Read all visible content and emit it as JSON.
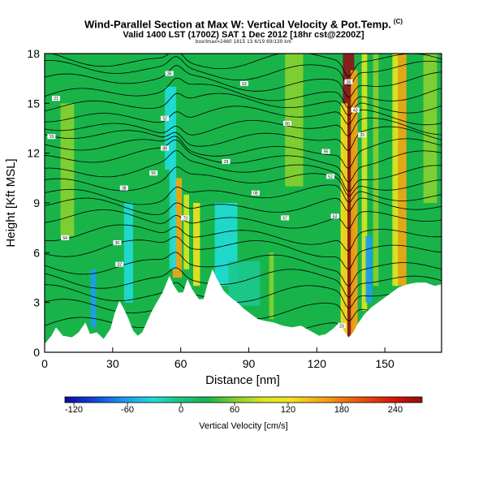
{
  "chart_data": {
    "type": "heatmap",
    "title": "Wind-Parallel Section at Max W: Vertical Velocity & Pot.Temp.",
    "title_mark": "(C)",
    "subtitle": "Valid 1400 LST (1700Z) SAT 1 Dec 2012 [18hr cst@2200Z]",
    "info_line": "box/lmax=2460 1815 13 6/19 69/139 km",
    "xlabel": "Distance [nm]",
    "ylabel": "Height [Kft MSL]",
    "xlim": [
      0,
      175
    ],
    "ylim": [
      0,
      18
    ],
    "xticks": [
      0,
      30,
      60,
      90,
      120,
      150
    ],
    "yticks": [
      0,
      3,
      6,
      9,
      12,
      15,
      18
    ],
    "colorbar": {
      "label": "Vertical Velocity [cm/s]",
      "range": [
        -130,
        270
      ],
      "tick_values": [
        -120,
        -60,
        0,
        60,
        120,
        180,
        240
      ],
      "tick_labels": [
        "-120",
        "-60",
        "0",
        "60",
        "120",
        "180",
        "240"
      ]
    },
    "colors": {
      "background": "#18b44a",
      "terrain": "#ffffff"
    },
    "terrain_profile": [
      [
        0,
        0.5
      ],
      [
        3,
        1.0
      ],
      [
        5,
        1.5
      ],
      [
        8,
        1.0
      ],
      [
        12,
        0.9
      ],
      [
        15,
        1.2
      ],
      [
        18,
        1.8
      ],
      [
        20,
        1.1
      ],
      [
        23,
        1.2
      ],
      [
        26,
        0.8
      ],
      [
        29,
        1.4
      ],
      [
        31,
        2.4
      ],
      [
        33,
        3.1
      ],
      [
        35,
        2.6
      ],
      [
        37,
        2.0
      ],
      [
        39,
        1.3
      ],
      [
        41,
        1.0
      ],
      [
        43,
        1.2
      ],
      [
        45,
        1.8
      ],
      [
        47,
        2.4
      ],
      [
        49,
        2.9
      ],
      [
        52,
        3.6
      ],
      [
        55,
        4.6
      ],
      [
        57,
        4.0
      ],
      [
        59,
        3.6
      ],
      [
        61,
        3.6
      ],
      [
        63,
        4.4
      ],
      [
        65,
        3.8
      ],
      [
        68,
        3.2
      ],
      [
        70,
        3.2
      ],
      [
        72,
        4.2
      ],
      [
        74,
        5.0
      ],
      [
        76,
        4.4
      ],
      [
        79,
        3.7
      ],
      [
        82,
        3.3
      ],
      [
        85,
        3.0
      ],
      [
        88,
        2.6
      ],
      [
        91,
        2.3
      ],
      [
        94,
        2.0
      ],
      [
        97,
        1.9
      ],
      [
        101,
        1.8
      ],
      [
        105,
        1.6
      ],
      [
        109,
        1.5
      ],
      [
        113,
        1.6
      ],
      [
        117,
        1.3
      ],
      [
        121,
        1.0
      ],
      [
        124,
        1.1
      ],
      [
        127,
        1.4
      ],
      [
        130,
        1.8
      ],
      [
        132,
        1.3
      ],
      [
        134,
        0.9
      ],
      [
        136,
        1.2
      ],
      [
        138,
        1.7
      ],
      [
        141,
        2.3
      ],
      [
        144,
        2.7
      ],
      [
        147,
        3.0
      ],
      [
        150,
        3.3
      ],
      [
        153,
        3.6
      ],
      [
        156,
        3.9
      ],
      [
        160,
        4.1
      ],
      [
        164,
        4.2
      ],
      [
        168,
        4.2
      ],
      [
        172,
        4.0
      ],
      [
        175,
        4.1
      ]
    ],
    "velocity_features": [
      {
        "x": 134,
        "half_width": 2.5,
        "y_from": 0.8,
        "y_to": 18,
        "value": 260
      },
      {
        "x": 132,
        "half_width": 1.5,
        "y_from": 1.0,
        "y_to": 15,
        "value": 120
      },
      {
        "x": 136.5,
        "half_width": 1.5,
        "y_from": 1.0,
        "y_to": 17,
        "value": 150
      },
      {
        "x": 141,
        "half_width": 1.2,
        "y_from": 2.5,
        "y_to": 18,
        "value": 80
      },
      {
        "x": 143,
        "half_width": 1.5,
        "y_from": 3.0,
        "y_to": 7.0,
        "value": -70
      },
      {
        "x": 146,
        "half_width": 1.2,
        "y_from": 4.0,
        "y_to": 18,
        "value": 40
      },
      {
        "x": 157,
        "half_width": 2.5,
        "y_from": 4.0,
        "y_to": 18,
        "value": 140
      },
      {
        "x": 154.5,
        "half_width": 1.2,
        "y_from": 4.0,
        "y_to": 18,
        "value": 60
      },
      {
        "x": 58.5,
        "half_width": 2.0,
        "y_from": 4.5,
        "y_to": 10.5,
        "value": 160
      },
      {
        "x": 56.5,
        "half_width": 1.5,
        "y_from": 5.0,
        "y_to": 16,
        "value": -40
      },
      {
        "x": 55,
        "half_width": 2.0,
        "y_from": 11,
        "y_to": 16,
        "value": -50
      },
      {
        "x": 62.5,
        "half_width": 1.2,
        "y_from": 5.0,
        "y_to": 9.5,
        "value": 80
      },
      {
        "x": 67,
        "half_width": 1.5,
        "y_from": 4.0,
        "y_to": 9.0,
        "value": 100
      },
      {
        "x": 21.5,
        "half_width": 1.2,
        "y_from": 1.5,
        "y_to": 5.0,
        "value": -60
      },
      {
        "x": 37,
        "half_width": 2.0,
        "y_from": 3.0,
        "y_to": 9.0,
        "value": -40
      },
      {
        "x": 80,
        "half_width": 5.0,
        "y_from": 4.0,
        "y_to": 9.0,
        "value": -35
      },
      {
        "x": 88,
        "half_width": 7.0,
        "y_from": 2.8,
        "y_to": 5.5,
        "value": -25
      },
      {
        "x": 100,
        "half_width": 1.0,
        "y_from": 2.0,
        "y_to": 6.0,
        "value": 30
      },
      {
        "x": 10,
        "half_width": 3.0,
        "y_from": 7.0,
        "y_to": 15,
        "value": 25
      },
      {
        "x": 110,
        "half_width": 4.0,
        "y_from": 10,
        "y_to": 18,
        "value": 30
      },
      {
        "x": 170,
        "half_width": 3.0,
        "y_from": 9.0,
        "y_to": 18,
        "value": 30
      }
    ],
    "isentrope_heights": [
      1.6,
      2.6,
      3.5,
      4.4,
      5.3,
      6.3,
      7.1,
      8.0,
      8.8,
      9.5,
      10.3,
      11.0,
      11.7,
      12.3,
      13.0,
      13.6,
      14.3,
      15.0,
      15.6,
      16.3,
      17.0,
      17.6
    ],
    "isentrope_labels": [
      {
        "x": 5,
        "y": 15.3,
        "text": "21"
      },
      {
        "x": 3,
        "y": 13.0,
        "text": "19"
      },
      {
        "x": 9,
        "y": 6.9,
        "text": "54"
      },
      {
        "x": 32,
        "y": 6.6,
        "text": "30"
      },
      {
        "x": 33,
        "y": 5.3,
        "text": "32"
      },
      {
        "x": 35,
        "y": 9.9,
        "text": "38"
      },
      {
        "x": 48,
        "y": 10.8,
        "text": "56"
      },
      {
        "x": 53,
        "y": 12.3,
        "text": "88"
      },
      {
        "x": 53,
        "y": 14.1,
        "text": "52"
      },
      {
        "x": 55,
        "y": 16.8,
        "text": "36"
      },
      {
        "x": 62,
        "y": 8.1,
        "text": "73"
      },
      {
        "x": 80,
        "y": 11.5,
        "text": "29"
      },
      {
        "x": 88,
        "y": 16.2,
        "text": "63"
      },
      {
        "x": 93,
        "y": 9.6,
        "text": "08"
      },
      {
        "x": 106,
        "y": 8.1,
        "text": "57"
      },
      {
        "x": 107,
        "y": 13.8,
        "text": "60"
      },
      {
        "x": 124,
        "y": 12.1,
        "text": "95"
      },
      {
        "x": 126,
        "y": 10.6,
        "text": "52"
      },
      {
        "x": 128,
        "y": 8.2,
        "text": "63"
      },
      {
        "x": 131,
        "y": 1.6,
        "text": "23"
      },
      {
        "x": 134,
        "y": 16.3,
        "text": "26"
      },
      {
        "x": 137,
        "y": 14.6,
        "text": "43"
      },
      {
        "x": 140,
        "y": 13.1,
        "text": "33"
      }
    ]
  }
}
